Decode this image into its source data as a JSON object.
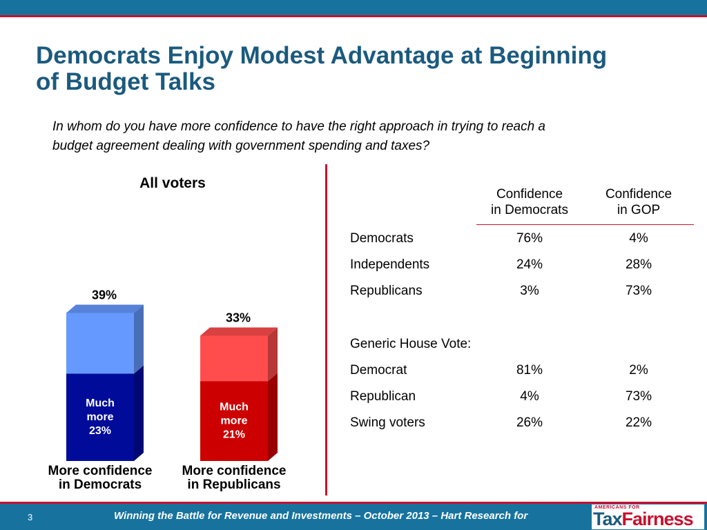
{
  "header": {
    "title_line1": "Democrats Enjoy Modest Advantage at Beginning",
    "title_line2": "of Budget Talks",
    "question_line1": "In whom do you have more confidence to have the right approach in trying to reach a",
    "question_line2": "budget agreement dealing with government spending and taxes?"
  },
  "chart_data": {
    "type": "bar",
    "title": "All voters",
    "categories": [
      "More confidence in Democrats",
      "More confidence in Republicans"
    ],
    "category_lines": [
      [
        "More confidence",
        "in Democrats"
      ],
      [
        "More confidence",
        "in Republicans"
      ]
    ],
    "totals": [
      39,
      33
    ],
    "total_labels": [
      "39%",
      "33%"
    ],
    "series": [
      {
        "values": [
          23,
          21
        ]
      },
      {
        "values": [
          16,
          12
        ]
      }
    ],
    "inner_labels": [
      [
        "Much",
        "more",
        "23%"
      ],
      [
        "Much",
        "more",
        "21%"
      ]
    ],
    "colors": {
      "dem_dark": "#000c99",
      "dem_light": "#6699ff",
      "gop_dark": "#cc0000",
      "gop_light": "#ff4d4d"
    },
    "ylim": [
      0,
      39
    ],
    "grid": false
  },
  "table": {
    "col1_line1": "Confidence",
    "col1_line2": "in Democrats",
    "col2_line1": "Confidence",
    "col2_line2": "in GOP",
    "rows": [
      {
        "label": "Democrats",
        "dem": "76%",
        "gop": "4%"
      },
      {
        "label": "Independents",
        "dem": "24%",
        "gop": "28%"
      },
      {
        "label": "Republicans",
        "dem": "3%",
        "gop": "73%"
      },
      {
        "label": "Generic House Vote:",
        "dem": "",
        "gop": ""
      },
      {
        "label": "Democrat",
        "dem": "81%",
        "gop": "2%"
      },
      {
        "label": "Republican",
        "dem": "4%",
        "gop": "73%"
      },
      {
        "label": "Swing voters",
        "dem": "26%",
        "gop": "22%"
      }
    ]
  },
  "footer": {
    "page": "3",
    "text": "Winning the Battle for Revenue and Investments – October 2013 – Hart Research",
    "for": "for",
    "logo_top": "AMERICANS FOR",
    "logo_tax": "Tax",
    "logo_fairness": "Fairness"
  }
}
